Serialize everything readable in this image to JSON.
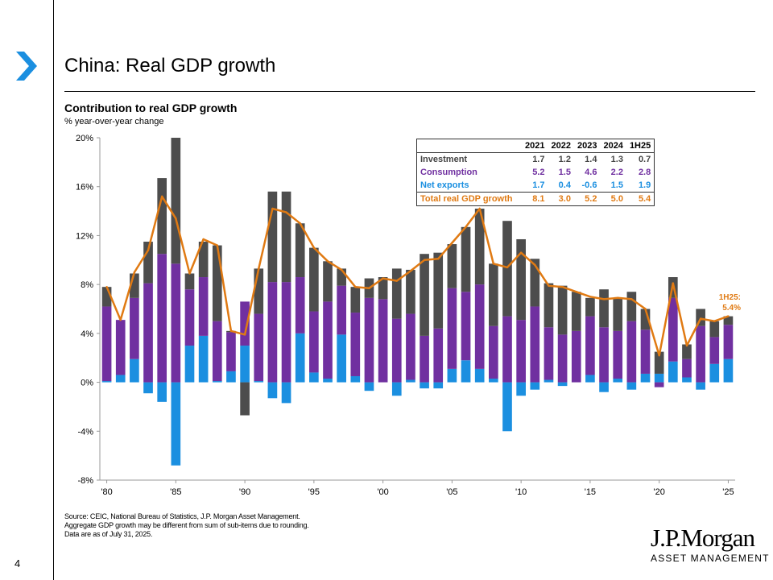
{
  "page": {
    "title": "China: Real GDP growth",
    "chart_subtitle": "Contribution to real GDP growth",
    "unit_label": "% year-over-year change",
    "page_number": "4",
    "notes": [
      "Source: CEIC, National Bureau of Statistics, J.P. Morgan Asset Management.",
      "Aggregate GDP growth may be different from sum of sub-items due to rounding.",
      "Data are as of July 31, 2025."
    ],
    "brand": "J.P.Morgan",
    "brand_sub": "ASSET MANAGEMENT"
  },
  "colors": {
    "investment": "#4d4d4d",
    "consumption": "#7030a0",
    "net_exports": "#1b8fe0",
    "total": "#e07a13",
    "chevron": "#1b8fe0"
  },
  "table": {
    "headers": [
      "",
      "2021",
      "2022",
      "2023",
      "2024",
      "1H25"
    ],
    "rows": [
      {
        "label": "Investment",
        "values": [
          "1.7",
          "1.2",
          "1.4",
          "1.3",
          "0.7"
        ],
        "cls": "row-inv"
      },
      {
        "label": "Consumption",
        "values": [
          "5.2",
          "1.5",
          "4.6",
          "2.2",
          "2.8"
        ],
        "cls": "row-con"
      },
      {
        "label": "Net exports",
        "values": [
          "1.7",
          "0.4",
          "-0.6",
          "1.5",
          "1.9"
        ],
        "cls": "row-net"
      },
      {
        "label": "Total real GDP growth",
        "values": [
          "8.1",
          "3.0",
          "5.2",
          "5.0",
          "5.4"
        ],
        "cls": "row-tot"
      }
    ]
  },
  "chart_data": {
    "type": "bar",
    "stacked": true,
    "title": "Contribution to real GDP growth",
    "ylabel": "% year-over-year change",
    "ylim": [
      -8,
      20
    ],
    "yticks": [
      -8,
      -4,
      0,
      4,
      8,
      12,
      16,
      20
    ],
    "ytick_labels": [
      "-8%",
      "-4%",
      "0%",
      "4%",
      "8%",
      "12%",
      "16%",
      "20%"
    ],
    "xtick_labels": [
      {
        "label": "'80",
        "index": 0
      },
      {
        "label": "'85",
        "index": 5
      },
      {
        "label": "'90",
        "index": 10
      },
      {
        "label": "'95",
        "index": 15
      },
      {
        "label": "'00",
        "index": 20
      },
      {
        "label": "'05",
        "index": 25
      },
      {
        "label": "'10",
        "index": 30
      },
      {
        "label": "'15",
        "index": 35
      },
      {
        "label": "'20",
        "index": 40
      },
      {
        "label": "'25",
        "index": 45
      }
    ],
    "categories": [
      "1980",
      "1981",
      "1982",
      "1983",
      "1984",
      "1985",
      "1986",
      "1987",
      "1988",
      "1989",
      "1990",
      "1991",
      "1992",
      "1993",
      "1994",
      "1995",
      "1996",
      "1997",
      "1998",
      "1999",
      "2000",
      "2001",
      "2002",
      "2003",
      "2004",
      "2005",
      "2006",
      "2007",
      "2008",
      "2009",
      "2010",
      "2011",
      "2012",
      "2013",
      "2014",
      "2015",
      "2016",
      "2017",
      "2018",
      "2019",
      "2020",
      "2021",
      "2022",
      "2023",
      "2024",
      "1H25"
    ],
    "series": [
      {
        "name": "Net exports",
        "values": [
          0.1,
          0.6,
          1.9,
          -0.9,
          -1.6,
          -6.8,
          3.0,
          3.8,
          0.1,
          0.9,
          3.0,
          0.1,
          -1.3,
          -1.7,
          4.0,
          0.8,
          0.3,
          3.9,
          0.5,
          -0.7,
          0.0,
          -1.1,
          0.2,
          -0.5,
          -0.5,
          1.1,
          1.8,
          1.1,
          0.3,
          -4.0,
          -1.1,
          -0.6,
          0.2,
          -0.3,
          0.0,
          0.6,
          -0.8,
          0.3,
          -0.6,
          0.7,
          0.7,
          1.7,
          0.4,
          -0.6,
          1.5,
          1.9
        ]
      },
      {
        "name": "Consumption",
        "values": [
          6.1,
          4.5,
          5.0,
          8.1,
          10.5,
          9.7,
          4.6,
          4.8,
          4.9,
          3.2,
          3.6,
          5.5,
          8.2,
          8.2,
          4.6,
          5.0,
          6.3,
          4.0,
          5.2,
          6.9,
          6.8,
          5.2,
          5.4,
          3.8,
          4.4,
          6.6,
          5.6,
          6.9,
          4.3,
          5.4,
          5.1,
          6.2,
          4.3,
          3.9,
          4.2,
          4.8,
          4.5,
          3.9,
          5.0,
          3.6,
          -0.4,
          5.2,
          1.5,
          4.6,
          2.2,
          2.8
        ]
      },
      {
        "name": "Investment",
        "values": [
          1.6,
          0.0,
          2.0,
          3.4,
          6.2,
          10.3,
          1.3,
          2.9,
          6.2,
          0.1,
          -2.7,
          3.7,
          7.4,
          7.4,
          4.4,
          5.2,
          3.3,
          1.4,
          2.1,
          1.6,
          1.8,
          4.1,
          3.6,
          6.7,
          6.2,
          3.6,
          5.3,
          6.2,
          5.1,
          7.8,
          6.6,
          3.9,
          3.6,
          4.0,
          3.2,
          1.5,
          3.1,
          2.7,
          2.4,
          1.7,
          1.8,
          1.7,
          1.2,
          1.4,
          1.3,
          0.7
        ]
      },
      {
        "name": "Total real GDP growth",
        "type": "line",
        "values": [
          7.8,
          5.1,
          9.0,
          10.8,
          15.2,
          13.4,
          8.9,
          11.7,
          11.2,
          4.2,
          3.9,
          9.3,
          14.2,
          13.9,
          13.0,
          11.0,
          9.9,
          9.2,
          7.8,
          7.7,
          8.5,
          8.3,
          9.1,
          10.0,
          10.1,
          11.4,
          12.7,
          14.2,
          9.7,
          9.4,
          10.6,
          9.6,
          7.9,
          7.8,
          7.4,
          7.0,
          6.8,
          6.9,
          6.8,
          6.0,
          2.2,
          8.1,
          3.0,
          5.2,
          5.0,
          5.4
        ]
      }
    ],
    "annotation": {
      "label": "1H25:",
      "value": "5.4%"
    },
    "legend_position": "table top-right"
  }
}
